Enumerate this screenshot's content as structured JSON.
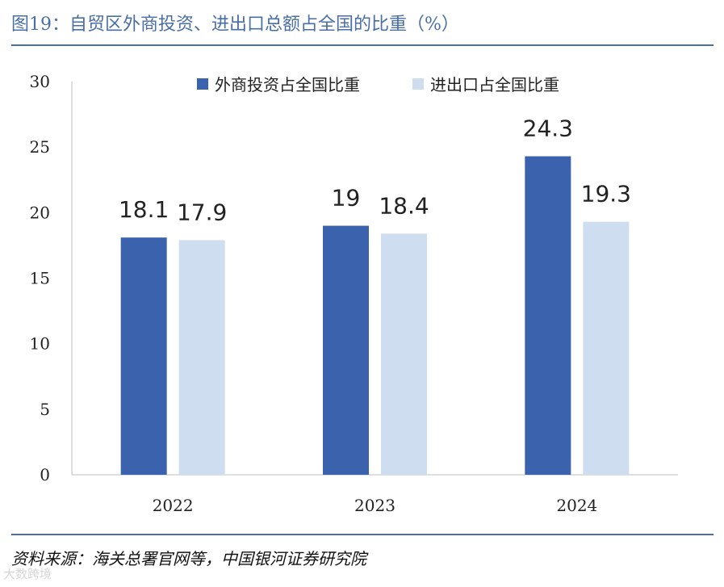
{
  "header": {
    "title": "图19：自贸区外商投资、进出口总额占全国的比重（%）"
  },
  "footer": {
    "source": "资料来源：海关总署官网等，中国银河证券研究院",
    "watermark": "大数跨境"
  },
  "colors": {
    "accent": "#4a6fa5",
    "series1": "#3a62ad",
    "series2": "#cfddf0",
    "axis": "#bfbfbf"
  },
  "chart_data": {
    "type": "bar",
    "title": "自贸区外商投资、进出口总额占全国的比重（%）",
    "categories": [
      "2022",
      "2023",
      "2024"
    ],
    "series": [
      {
        "name": "外商投资占全国比重",
        "values": [
          18.1,
          19,
          24.3
        ],
        "labels": [
          "18.1",
          "19",
          "24.3"
        ]
      },
      {
        "name": "进出口占全国比重",
        "values": [
          17.9,
          18.4,
          19.3
        ],
        "labels": [
          "17.9",
          "18.4",
          "19.3"
        ]
      }
    ],
    "yticks": [
      "0",
      "5",
      "10",
      "15",
      "20",
      "25",
      "30"
    ],
    "ylim": [
      0,
      30
    ],
    "xlabel": "",
    "ylabel": "",
    "legend": "top-center",
    "grid": false
  }
}
